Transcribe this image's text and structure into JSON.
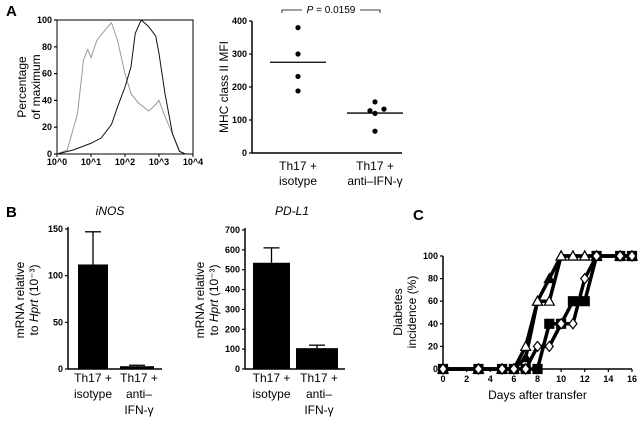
{
  "panels": {
    "a": "A",
    "b": "B",
    "c": "C"
  },
  "chart_data": [
    {
      "id": "histogram",
      "type": "line",
      "xscale": "log",
      "xlim": [
        1,
        10000
      ],
      "ylim": [
        0,
        100
      ],
      "ylabel_lines": [
        "Percentage",
        "of maximum"
      ],
      "xticks": [
        1,
        10,
        100,
        1000,
        10000
      ],
      "xtick_labels": [
        "10^0",
        "10^1",
        "10^2",
        "10^3",
        "10^4"
      ],
      "yticks": [
        0,
        20,
        40,
        60,
        80,
        100
      ],
      "series": [
        {
          "color": "#9a9a9a",
          "x": [
            1,
            2,
            4,
            6,
            8,
            10,
            15,
            25,
            40,
            60,
            100,
            150,
            250,
            500,
            800,
            1000,
            1500,
            2500,
            4000,
            6000
          ],
          "y": [
            0,
            3,
            30,
            70,
            78,
            72,
            85,
            92,
            98,
            85,
            60,
            45,
            38,
            32,
            37,
            40,
            28,
            15,
            2,
            0
          ]
        },
        {
          "color": "#111111",
          "x": [
            1,
            3,
            10,
            20,
            40,
            60,
            100,
            150,
            200,
            300,
            500,
            800,
            1000,
            1500,
            2500,
            4000,
            6000
          ],
          "y": [
            0,
            3,
            8,
            12,
            22,
            35,
            50,
            65,
            90,
            100,
            95,
            88,
            75,
            45,
            15,
            2,
            0
          ]
        }
      ]
    },
    {
      "id": "mhc",
      "type": "scatter",
      "ylabel": "MHC class II MFI",
      "ylim": [
        0,
        400
      ],
      "yticks": [
        0,
        100,
        200,
        300,
        400
      ],
      "annotation": "P = 0.0159",
      "groups": [
        {
          "label_lines": [
            "Th17 +",
            "isotype"
          ],
          "values": [
            380,
            300,
            232,
            188
          ],
          "mean": 275
        },
        {
          "label_lines": [
            "Th17 +",
            "anti–IFN-γ"
          ],
          "values": [
            155,
            128,
            133,
            120,
            66
          ],
          "mean": 121
        }
      ]
    },
    {
      "id": "inos",
      "type": "bar",
      "title": "iNOS",
      "ylabel_lines": [
        "mRNA relative",
        "to Hprt (10⁻³)"
      ],
      "ylim": [
        0,
        150
      ],
      "yticks": [
        0,
        50,
        100,
        150
      ],
      "categories": [
        [
          "Th17 +",
          "isotype"
        ],
        [
          "Th17 +",
          "anti–",
          "IFN-γ"
        ]
      ],
      "values": [
        112,
        3
      ],
      "errors": [
        35,
        1
      ]
    },
    {
      "id": "pdl1",
      "type": "bar",
      "title": "PD-L1",
      "ylabel_lines": [
        "mRNA relative",
        "to Hprt (10⁻³)"
      ],
      "ylim": [
        0,
        700
      ],
      "yticks": [
        0,
        100,
        200,
        300,
        400,
        500,
        600,
        700
      ],
      "categories": [
        [
          "Th17 +",
          "isotype"
        ],
        [
          "Th17 +",
          "anti–",
          "IFN-γ"
        ]
      ],
      "values": [
        535,
        105
      ],
      "errors": [
        75,
        15
      ]
    },
    {
      "id": "diabetes",
      "type": "line",
      "xlabel": "Days after transfer",
      "ylabel_lines": [
        "Diabetes",
        "incidence (%)"
      ],
      "xlim": [
        0,
        16
      ],
      "ylim": [
        0,
        100
      ],
      "xticks": [
        0,
        2,
        4,
        6,
        8,
        10,
        12,
        14,
        16
      ],
      "yticks": [
        0,
        20,
        40,
        60,
        80,
        100
      ],
      "series": [
        {
          "marker": "filled-triangle",
          "x": [
            0,
            3,
            5,
            6,
            7,
            8,
            9,
            10,
            11,
            12,
            13,
            15,
            16
          ],
          "y": [
            0,
            0,
            0,
            0,
            10,
            60,
            80,
            100,
            100,
            100,
            100,
            100,
            100
          ]
        },
        {
          "marker": "open-triangle",
          "x": [
            0,
            3,
            5,
            6,
            7,
            8,
            9,
            10,
            11,
            12,
            13,
            15,
            16
          ],
          "y": [
            0,
            0,
            0,
            0,
            20,
            60,
            60,
            100,
            100,
            100,
            100,
            100,
            100
          ]
        },
        {
          "marker": "filled-square",
          "x": [
            0,
            3,
            5,
            6,
            7,
            8,
            9,
            10,
            11,
            12,
            13,
            15,
            16
          ],
          "y": [
            0,
            0,
            0,
            0,
            0,
            0,
            40,
            40,
            60,
            60,
            100,
            100,
            100
          ]
        },
        {
          "marker": "open-diamond",
          "x": [
            0,
            3,
            5,
            6,
            7,
            8,
            9,
            10,
            11,
            12,
            13,
            15,
            16
          ],
          "y": [
            0,
            0,
            0,
            0,
            0,
            20,
            20,
            40,
            40,
            80,
            100,
            100,
            100
          ]
        }
      ]
    }
  ]
}
